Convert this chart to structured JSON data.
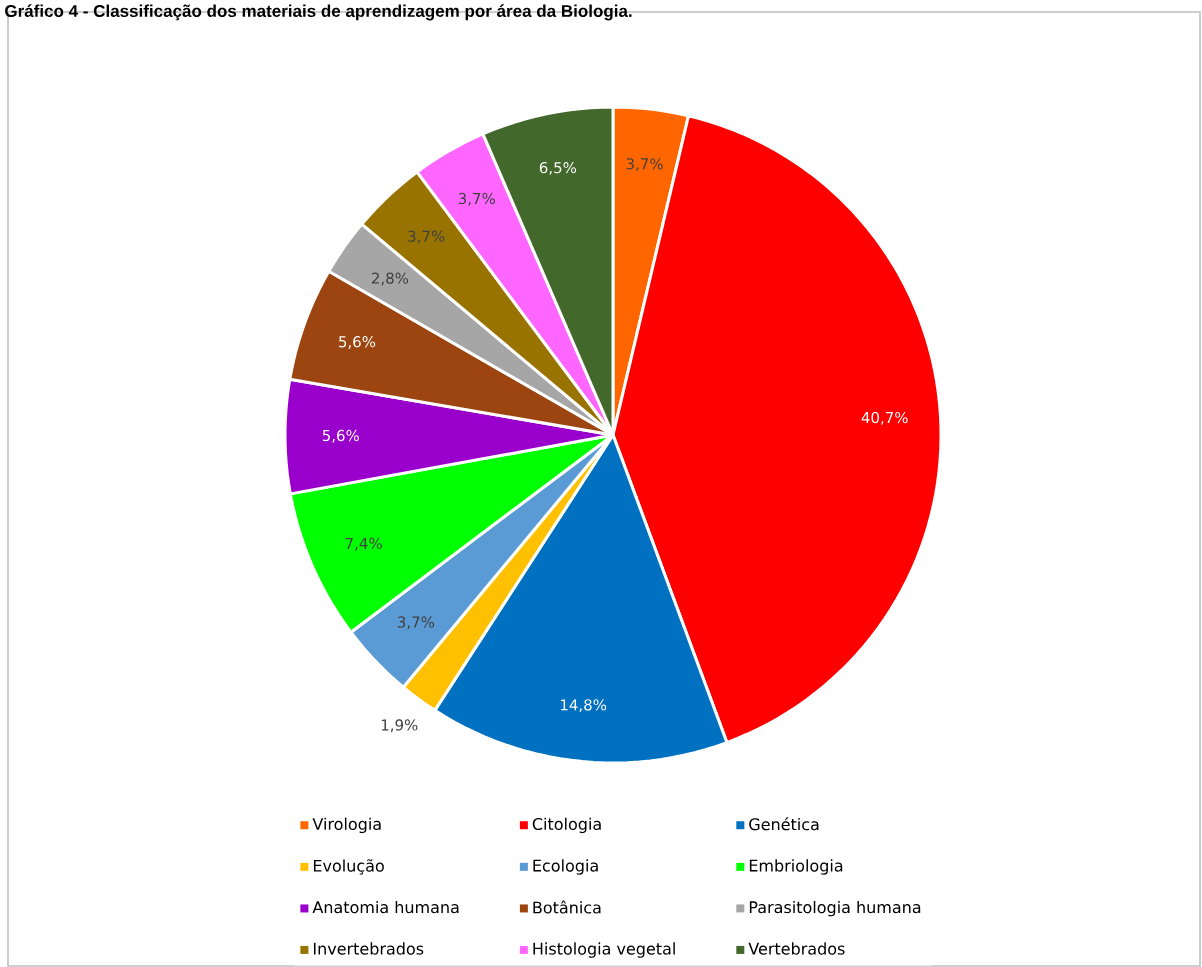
{
  "chart_data": {
    "type": "pie",
    "title": "Gráfico 4 - Classificação dos materiais de aprendizagem por área da Biologia.",
    "categories": [
      "Virologia",
      "Citologia",
      "Genética",
      "Evolução",
      "Ecologia",
      "Embriologia",
      "Anatomia humana",
      "Botânica",
      "Parasitologia humana",
      "Invertebrados",
      "Histologia vegetal",
      "Vertebrados"
    ],
    "values": [
      3.7,
      40.7,
      14.8,
      1.9,
      3.7,
      7.4,
      5.6,
      5.6,
      2.8,
      3.7,
      3.7,
      6.5
    ],
    "value_labels": [
      "3,7%",
      "40,7%",
      "14,8%",
      "1,9%",
      "3,7%",
      "7,4%",
      "5,6%",
      "5,6%",
      "2,8%",
      "3,7%",
      "3,7%",
      "6,5%"
    ],
    "colors": [
      "#ff6600",
      "#ff0000",
      "#0070c0",
      "#ffc000",
      "#5b9bd5",
      "#00ff00",
      "#9900cc",
      "#9c4510",
      "#a6a6a6",
      "#997300",
      "#ff66ff",
      "#43682b"
    ],
    "legend": "bottom"
  }
}
